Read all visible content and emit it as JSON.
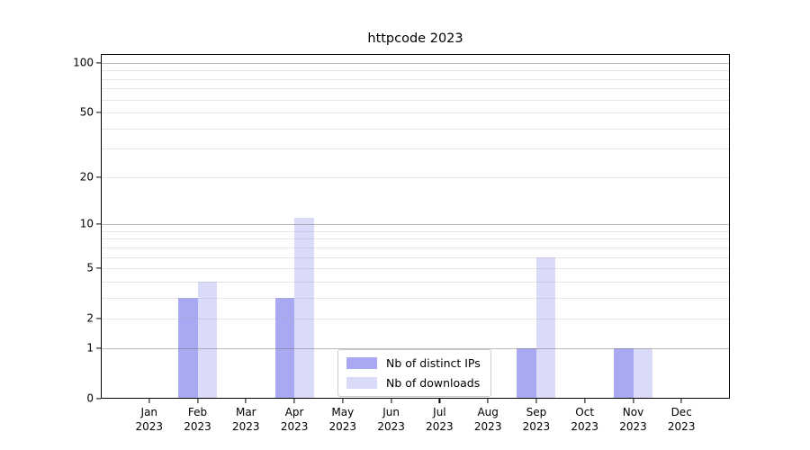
{
  "chart_data": {
    "type": "bar",
    "title": "httpcode 2023",
    "categories": [
      "Jan",
      "Feb",
      "Mar",
      "Apr",
      "May",
      "Jun",
      "Jul",
      "Aug",
      "Sep",
      "Oct",
      "Nov",
      "Dec"
    ],
    "x_year_suffix": "2023",
    "series": [
      {
        "name": "Nb of distinct IPs",
        "color": "#a9a9f3",
        "values": [
          0,
          3,
          0,
          3,
          0,
          0,
          0,
          0,
          1,
          0,
          1,
          0
        ]
      },
      {
        "name": "Nb of downloads",
        "color": "#dadaf9",
        "values": [
          0,
          4,
          0,
          11,
          0,
          0,
          0,
          0,
          6,
          0,
          1,
          0
        ]
      }
    ],
    "yscale": "log1p",
    "ylim": [
      0,
      113
    ],
    "y_tick_values": [
      0,
      1,
      2,
      5,
      10,
      20,
      50,
      100
    ],
    "y_major_gridlines": [
      1,
      10,
      100
    ],
    "y_minor_gridlines": [
      2,
      3,
      4,
      5,
      6,
      7,
      8,
      9,
      20,
      30,
      40,
      50,
      60,
      70,
      80,
      90
    ],
    "xlabel": "",
    "ylabel": "",
    "grid": "horizontal",
    "legend_position": "inside-bottom-center",
    "axis_color": "#000000",
    "background_color": "#ffffff"
  }
}
